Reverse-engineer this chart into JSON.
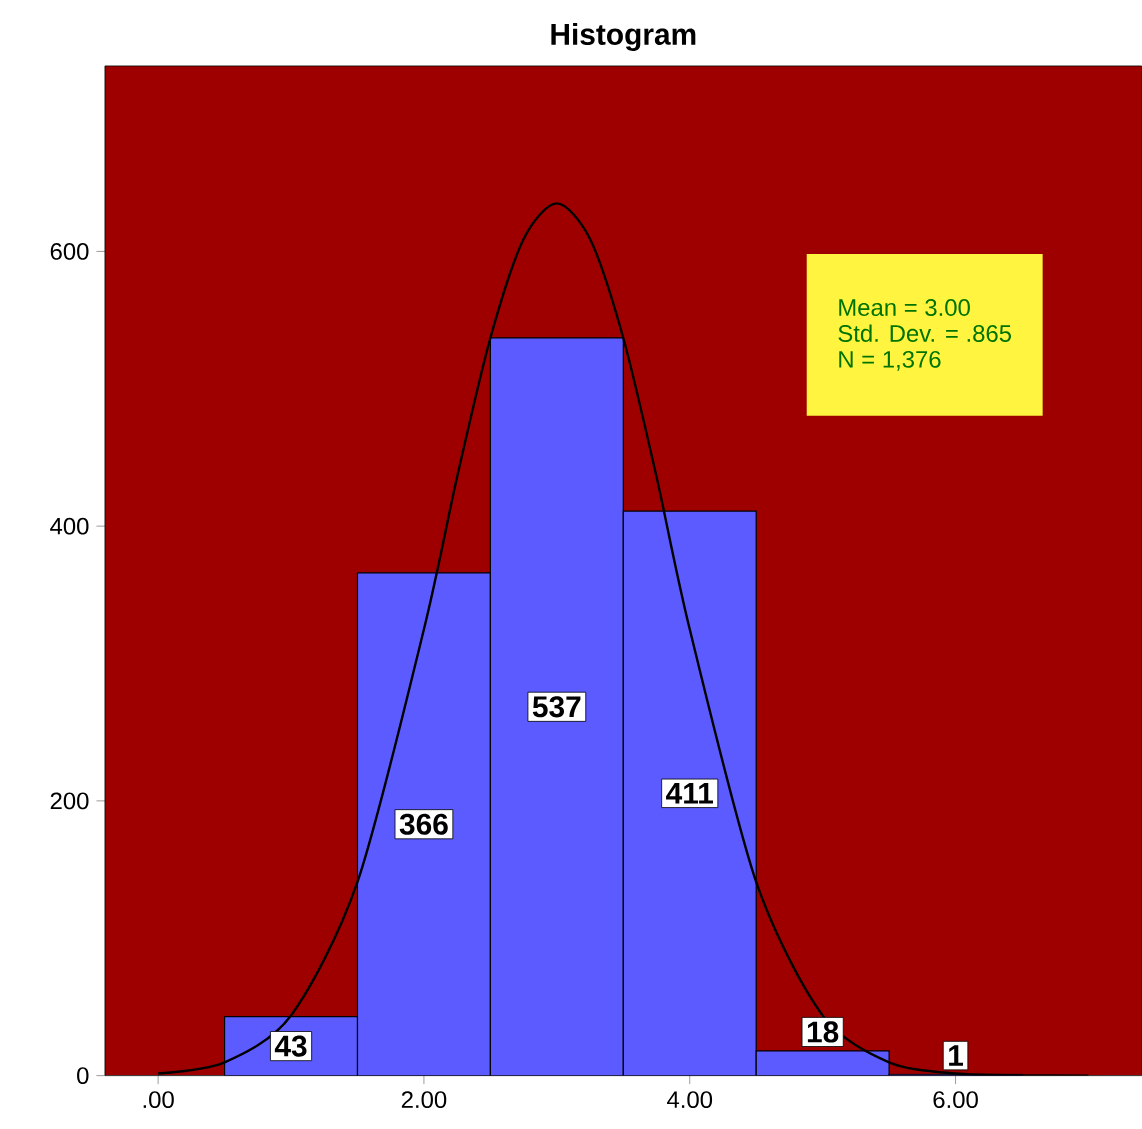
{
  "chart_data": {
    "type": "histogram",
    "title": "Histogram",
    "bins": [
      0.5,
      1.5,
      2.5,
      3.5,
      4.5,
      5.5,
      6.5
    ],
    "values": [
      43,
      366,
      537,
      411,
      18,
      1
    ],
    "color": "#5b5bff",
    "value_labels": [
      "43",
      "366",
      "537",
      "411",
      "18",
      "1"
    ],
    "series": [
      {
        "type": "line",
        "color": "#000000",
        "x": [
          0,
          0.5,
          1,
          1.5,
          2,
          2.25,
          2.5,
          2.75,
          3,
          3.25,
          3.5,
          3.75,
          4,
          4.5,
          5,
          5.5,
          6,
          6.5,
          7
        ],
        "values": [
          1.5,
          9.7,
          43.8,
          141,
          325,
          436,
          537,
          609,
          635,
          609,
          537,
          436,
          325,
          141,
          43.8,
          9.7,
          1.5,
          0.2,
          0
        ]
      }
    ],
    "xlim": [
      -0.4,
      7.4
    ],
    "ylim": [
      0,
      735
    ],
    "xticks": [
      {
        "value": 0,
        "label": ".00"
      },
      {
        "value": 2,
        "label": "2.00"
      },
      {
        "value": 4,
        "label": "4.00"
      },
      {
        "value": 6,
        "label": "6.00"
      }
    ],
    "yticks": [
      0,
      200,
      400,
      600
    ],
    "grid": false,
    "annotations": [
      "Mean = 3.00",
      "Std. Dev. = .865",
      "N = 1,376"
    ]
  }
}
